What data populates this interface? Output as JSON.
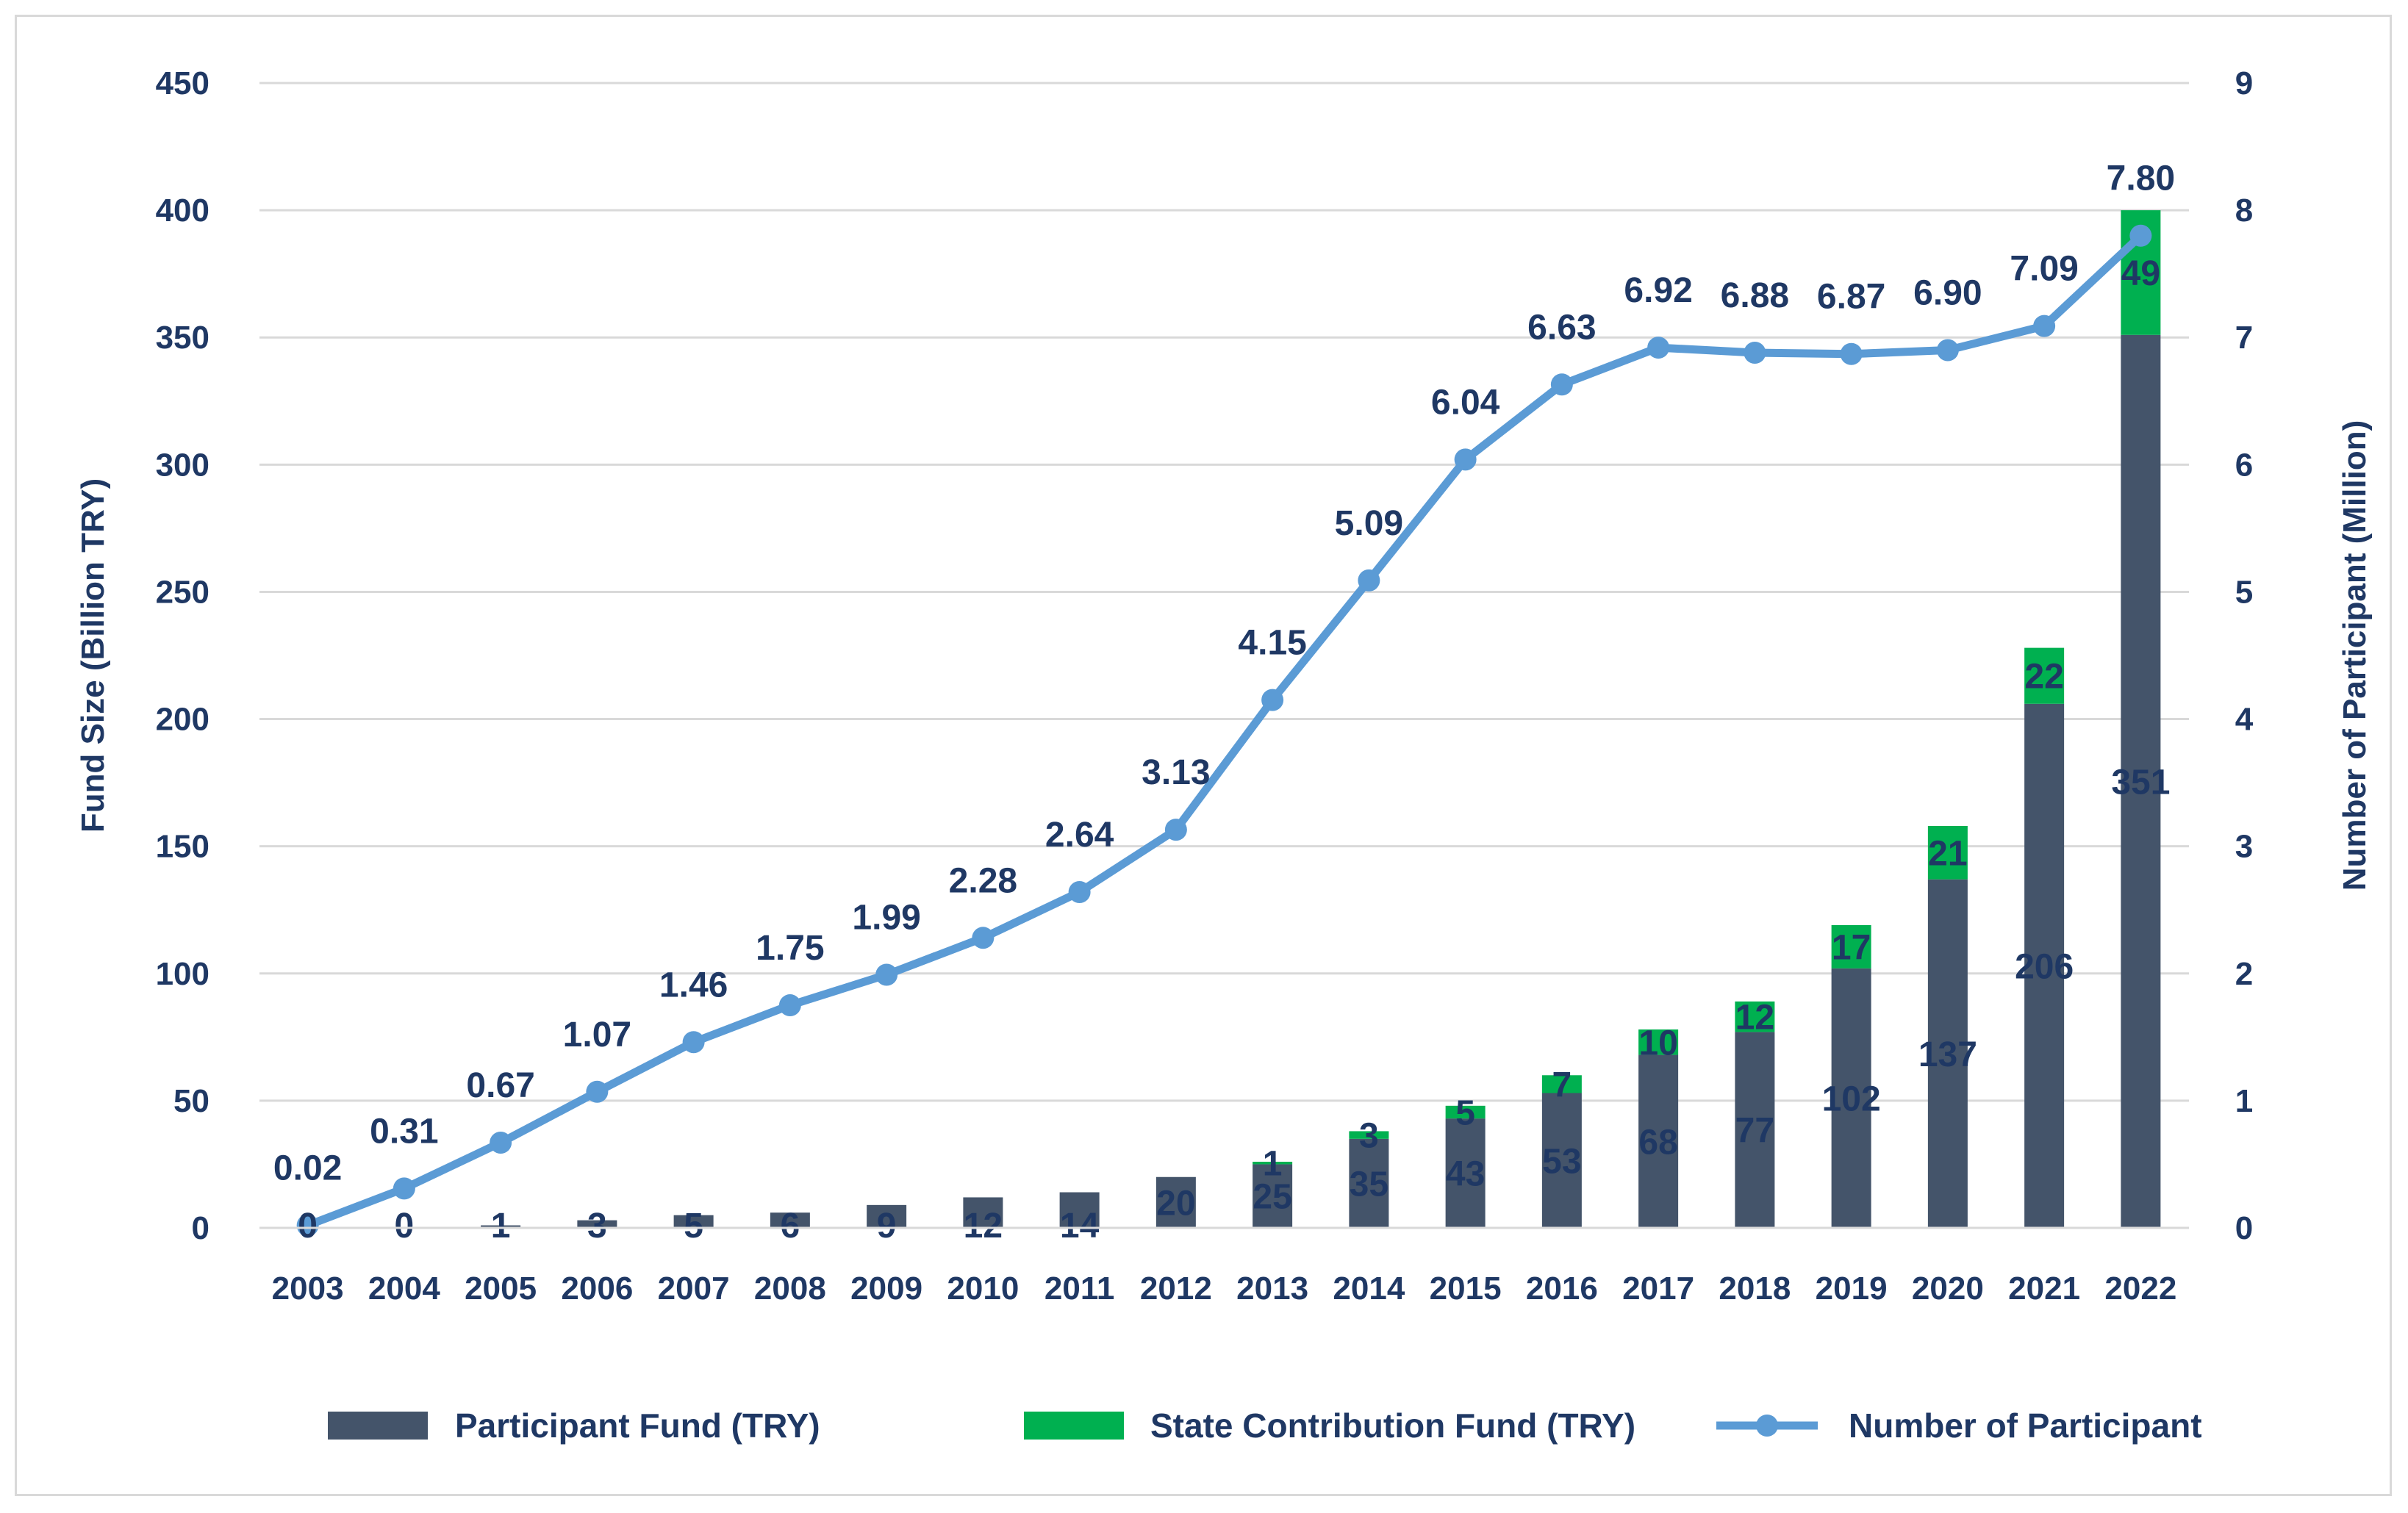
{
  "chart_data": {
    "type": "bar",
    "title": "",
    "categories": [
      "2003",
      "2004",
      "2005",
      "2006",
      "2007",
      "2008",
      "2009",
      "2010",
      "2011",
      "2012",
      "2013",
      "2014",
      "2015",
      "2016",
      "2017",
      "2018",
      "2019",
      "2020",
      "2021",
      "2022"
    ],
    "series": [
      {
        "name": "Participant Fund (TRY)",
        "kind": "bar",
        "stack": "fund",
        "axis": "left",
        "values": [
          0,
          0,
          1,
          3,
          5,
          6,
          9,
          12,
          14,
          20,
          25,
          35,
          43,
          53,
          68,
          77,
          102,
          137,
          206,
          351
        ],
        "labels": [
          "0",
          "0",
          "1",
          "3",
          "5",
          "6",
          "9",
          "12",
          "14",
          "20",
          "25",
          "35",
          "43",
          "53",
          "68",
          "77",
          "102",
          "137",
          "206",
          "351"
        ]
      },
      {
        "name": "State Contribution Fund (TRY)",
        "kind": "bar",
        "stack": "fund",
        "axis": "left",
        "values": [
          null,
          null,
          null,
          null,
          null,
          null,
          null,
          null,
          null,
          null,
          1,
          3,
          5,
          7,
          10,
          12,
          17,
          21,
          22,
          49
        ],
        "labels": [
          "",
          "",
          "",
          "",
          "",
          "",
          "",
          "",
          "",
          "",
          "1",
          "3",
          "5",
          "7",
          "10",
          "12",
          "17",
          "21",
          "22",
          "49"
        ]
      },
      {
        "name": "Number of Participant",
        "kind": "line",
        "axis": "right",
        "values": [
          0.02,
          0.31,
          0.67,
          1.07,
          1.46,
          1.75,
          1.99,
          2.28,
          2.64,
          3.13,
          4.15,
          5.09,
          6.04,
          6.63,
          6.92,
          6.88,
          6.87,
          6.9,
          7.09,
          7.8
        ],
        "labels": [
          "0.02",
          "0.31",
          "0.67",
          "1.07",
          "1.46",
          "1.75",
          "1.99",
          "2.28",
          "2.64",
          "3.13",
          "4.15",
          "5.09",
          "6.04",
          "6.63",
          "6.92",
          "6.88",
          "6.87",
          "6.90",
          "7.09",
          "7.80"
        ]
      }
    ],
    "y_left": {
      "label": "Fund Size (Billion TRY)",
      "lim": [
        0,
        450
      ],
      "ticks": [
        "0",
        "50",
        "100",
        "150",
        "200",
        "250",
        "300",
        "350",
        "400",
        "450"
      ]
    },
    "y_right": {
      "label": "Number of Participant (Million)",
      "lim": [
        0,
        9
      ],
      "ticks": [
        "0",
        "1",
        "2",
        "3",
        "4",
        "5",
        "6",
        "7",
        "8",
        "9"
      ]
    },
    "grid": true,
    "legend_position": "bottom",
    "colors": {
      "participant_fund": "#44546a",
      "state_fund": "#00b050",
      "line": "#5b9bd5",
      "text": "#1f3864",
      "grid": "#d9d9d9"
    }
  }
}
